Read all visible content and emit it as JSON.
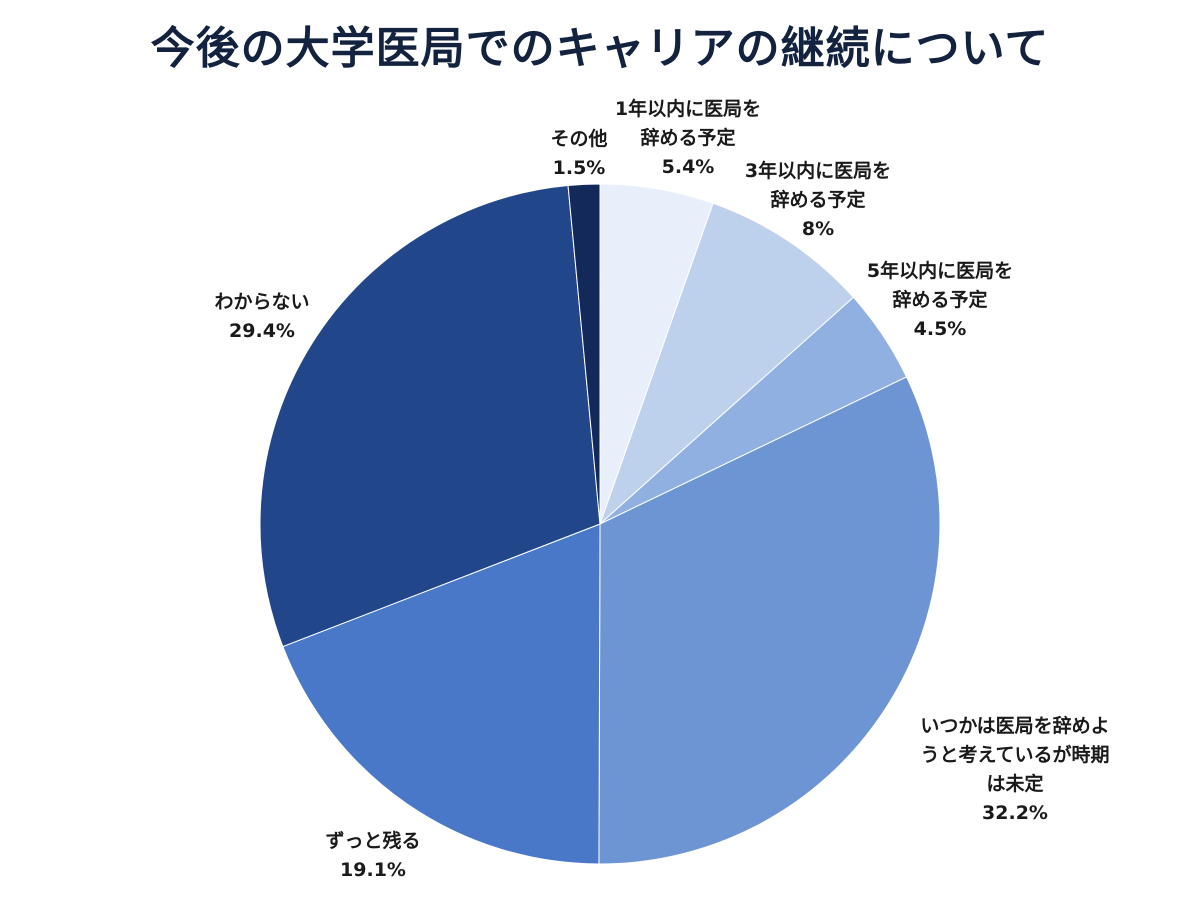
{
  "title": "今後の大学医局でのキャリアの継続について",
  "chart_data": {
    "type": "pie",
    "title": "今後の大学医局でのキャリアの継続について",
    "start": "12 o'clock, clockwise",
    "slices": [
      {
        "label": [
          "1年以内に医局を",
          "辞める予定"
        ],
        "value": 5.4,
        "display": "5.4%",
        "color": "#e9effa"
      },
      {
        "label": [
          "3年以内に医局を",
          "辞める予定"
        ],
        "value": 8,
        "display": "8%",
        "color": "#bdd0ec"
      },
      {
        "label": [
          "5年以内に医局を",
          "辞める予定"
        ],
        "value": 4.5,
        "display": "4.5%",
        "color": "#8fb0e0"
      },
      {
        "label": [
          "いつかは医局を辞めよ",
          "うと考えているが時期",
          "は未定"
        ],
        "value": 32.2,
        "display": "32.2%",
        "color": "#6d95d4"
      },
      {
        "label": [
          "ずっと残る"
        ],
        "value": 19.1,
        "display": "19.1%",
        "color": "#4a78c9"
      },
      {
        "label": [
          "わからない"
        ],
        "value": 29.4,
        "display": "29.4%",
        "color": "#22468a"
      },
      {
        "label": [
          "その他"
        ],
        "value": 1.5,
        "display": "1.5%",
        "color": "#13295a"
      }
    ]
  }
}
